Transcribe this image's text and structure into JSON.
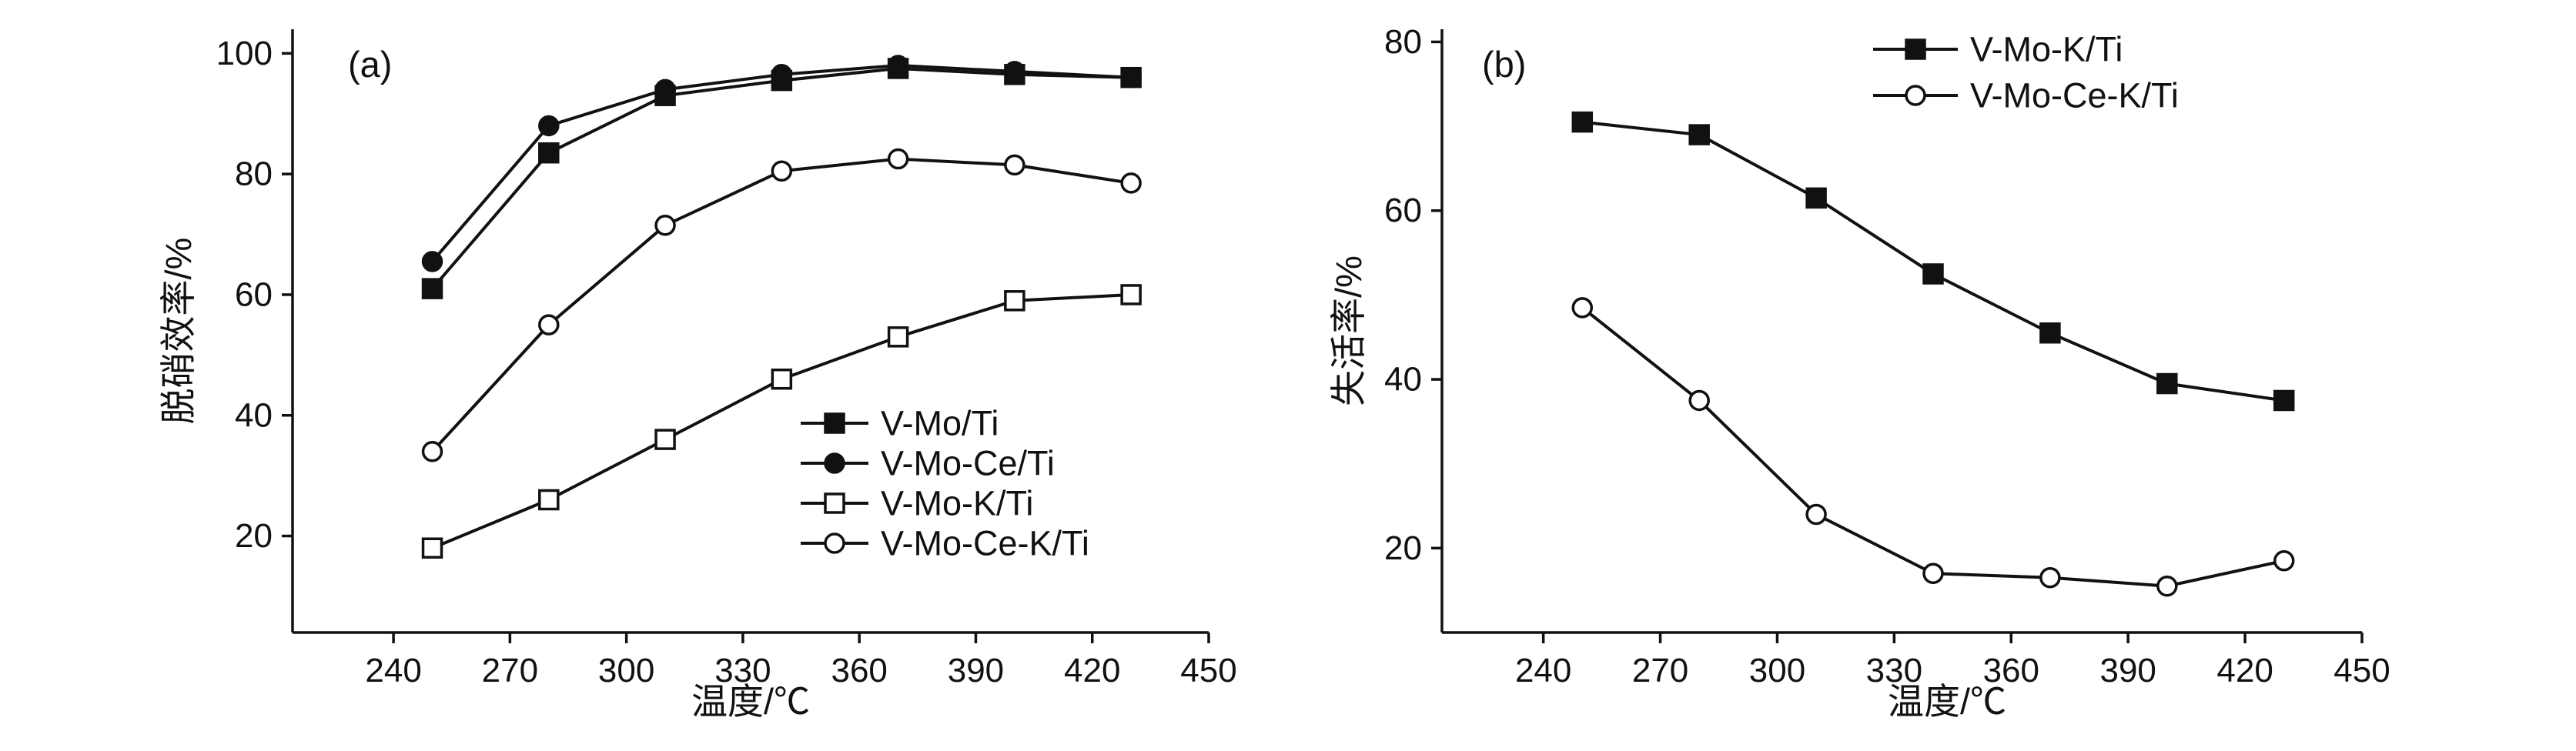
{
  "figure": {
    "background": "#ffffff",
    "line_color": "#111111"
  },
  "chart_data": [
    {
      "type": "line",
      "panel_label": "(a)",
      "xlabel": "温度/℃",
      "ylabel": "脱硝效率/%",
      "xlim": [
        214,
        450
      ],
      "ylim": [
        4,
        104
      ],
      "xticks": [
        240,
        270,
        300,
        330,
        360,
        390,
        420,
        450
      ],
      "yticks": [
        20,
        40,
        60,
        80,
        100
      ],
      "grid": false,
      "legend_position": "lower-right-inside",
      "x": [
        250,
        280,
        310,
        340,
        370,
        400,
        430
      ],
      "series": [
        {
          "name": "V-Mo/Ti",
          "marker": "filled-square",
          "values": [
            61,
            83.5,
            93,
            95.5,
            97.5,
            96.5,
            96
          ]
        },
        {
          "name": "V-Mo-Ce/Ti",
          "marker": "filled-circle",
          "values": [
            65.5,
            88,
            94,
            96.5,
            98,
            97,
            96
          ]
        },
        {
          "name": "V-Mo-K/Ti",
          "marker": "open-square",
          "values": [
            18,
            26,
            36,
            46,
            53,
            59,
            60
          ]
        },
        {
          "name": "V-Mo-Ce-K/Ti",
          "marker": "open-circle",
          "values": [
            34,
            55,
            71.5,
            80.5,
            82.5,
            81.5,
            78.5
          ]
        }
      ]
    },
    {
      "type": "line",
      "panel_label": "(b)",
      "xlabel": "温度/℃",
      "ylabel": "失活率/%",
      "xlim": [
        214,
        450
      ],
      "ylim": [
        10,
        81.5
      ],
      "xticks": [
        240,
        270,
        300,
        330,
        360,
        390,
        420,
        450
      ],
      "yticks": [
        20,
        40,
        60,
        80
      ],
      "grid": false,
      "legend_position": "upper-right-inside",
      "x": [
        250,
        280,
        310,
        340,
        370,
        400,
        430
      ],
      "series": [
        {
          "name": "V-Mo-K/Ti",
          "marker": "filled-square",
          "values": [
            70.5,
            69,
            61.5,
            52.5,
            45.5,
            39.5,
            37.5
          ]
        },
        {
          "name": "V-Mo-Ce-K/Ti",
          "marker": "open-circle",
          "values": [
            48.5,
            37.5,
            24,
            17,
            16.5,
            15.5,
            18.5
          ]
        }
      ]
    }
  ]
}
